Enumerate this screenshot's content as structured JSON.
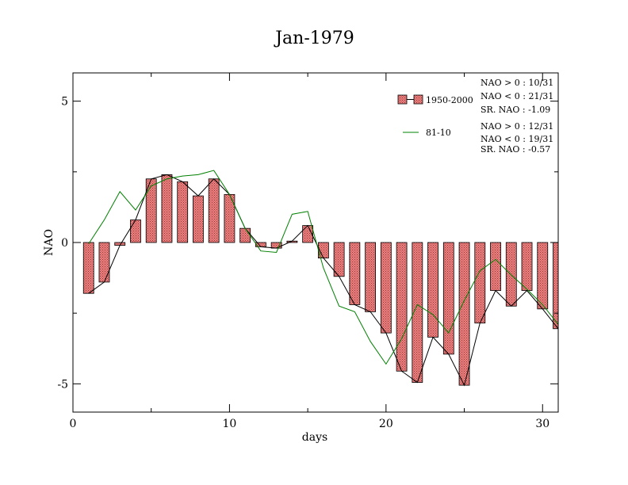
{
  "chart_data": {
    "type": "bar",
    "title": "Jan-1979",
    "xlabel": "days",
    "ylabel": "NAO",
    "xlim": [
      0,
      31
    ],
    "ylim": [
      -6,
      6
    ],
    "xticks": [
      0,
      10,
      20,
      30
    ],
    "xtick_labels": [
      "0",
      "10",
      "20",
      "30"
    ],
    "yticks": [
      -5,
      0,
      5
    ],
    "ytick_labels": [
      "-5",
      "0",
      "5"
    ],
    "grid": false,
    "legend_position": "top-right",
    "x": [
      1,
      2,
      3,
      4,
      5,
      6,
      7,
      8,
      9,
      10,
      11,
      12,
      13,
      14,
      15,
      16,
      17,
      18,
      19,
      20,
      21,
      22,
      23,
      24,
      25,
      26,
      27,
      28,
      29,
      30,
      31
    ],
    "series": [
      {
        "name": "1950-2000",
        "kind": "bar+line",
        "color": "#f08080",
        "line_color": "#000000",
        "values": [
          -1.8,
          -1.4,
          -0.1,
          0.8,
          2.25,
          2.4,
          2.15,
          1.65,
          2.25,
          1.7,
          0.5,
          -0.15,
          -0.2,
          0.05,
          0.6,
          -0.55,
          -1.2,
          -2.2,
          -2.45,
          -3.2,
          -4.55,
          -4.95,
          -3.35,
          -3.95,
          -5.05,
          -2.85,
          -1.7,
          -2.25,
          -1.7,
          -2.35,
          -3.05
        ]
      },
      {
        "name": "81-10",
        "kind": "line",
        "color": "#008000",
        "values": [
          -0.05,
          0.8,
          1.8,
          1.15,
          2.0,
          2.25,
          2.35,
          2.4,
          2.55,
          1.7,
          0.5,
          -0.3,
          -0.35,
          1.0,
          1.1,
          -0.9,
          -2.25,
          -2.45,
          -3.5,
          -4.3,
          -3.4,
          -2.2,
          -2.55,
          -3.2,
          -2.05,
          -1.0,
          -0.6,
          -1.15,
          -1.65,
          -2.2,
          -2.9
        ]
      }
    ]
  },
  "annotations": {
    "group1": [
      "NAO > 0 : 10/31",
      "NAO < 0 : 21/31",
      "SR. NAO : -1.09"
    ],
    "group2": [
      "NAO > 0 : 12/31",
      "NAO < 0 : 19/31",
      "SR. NAO : -0.57"
    ]
  }
}
